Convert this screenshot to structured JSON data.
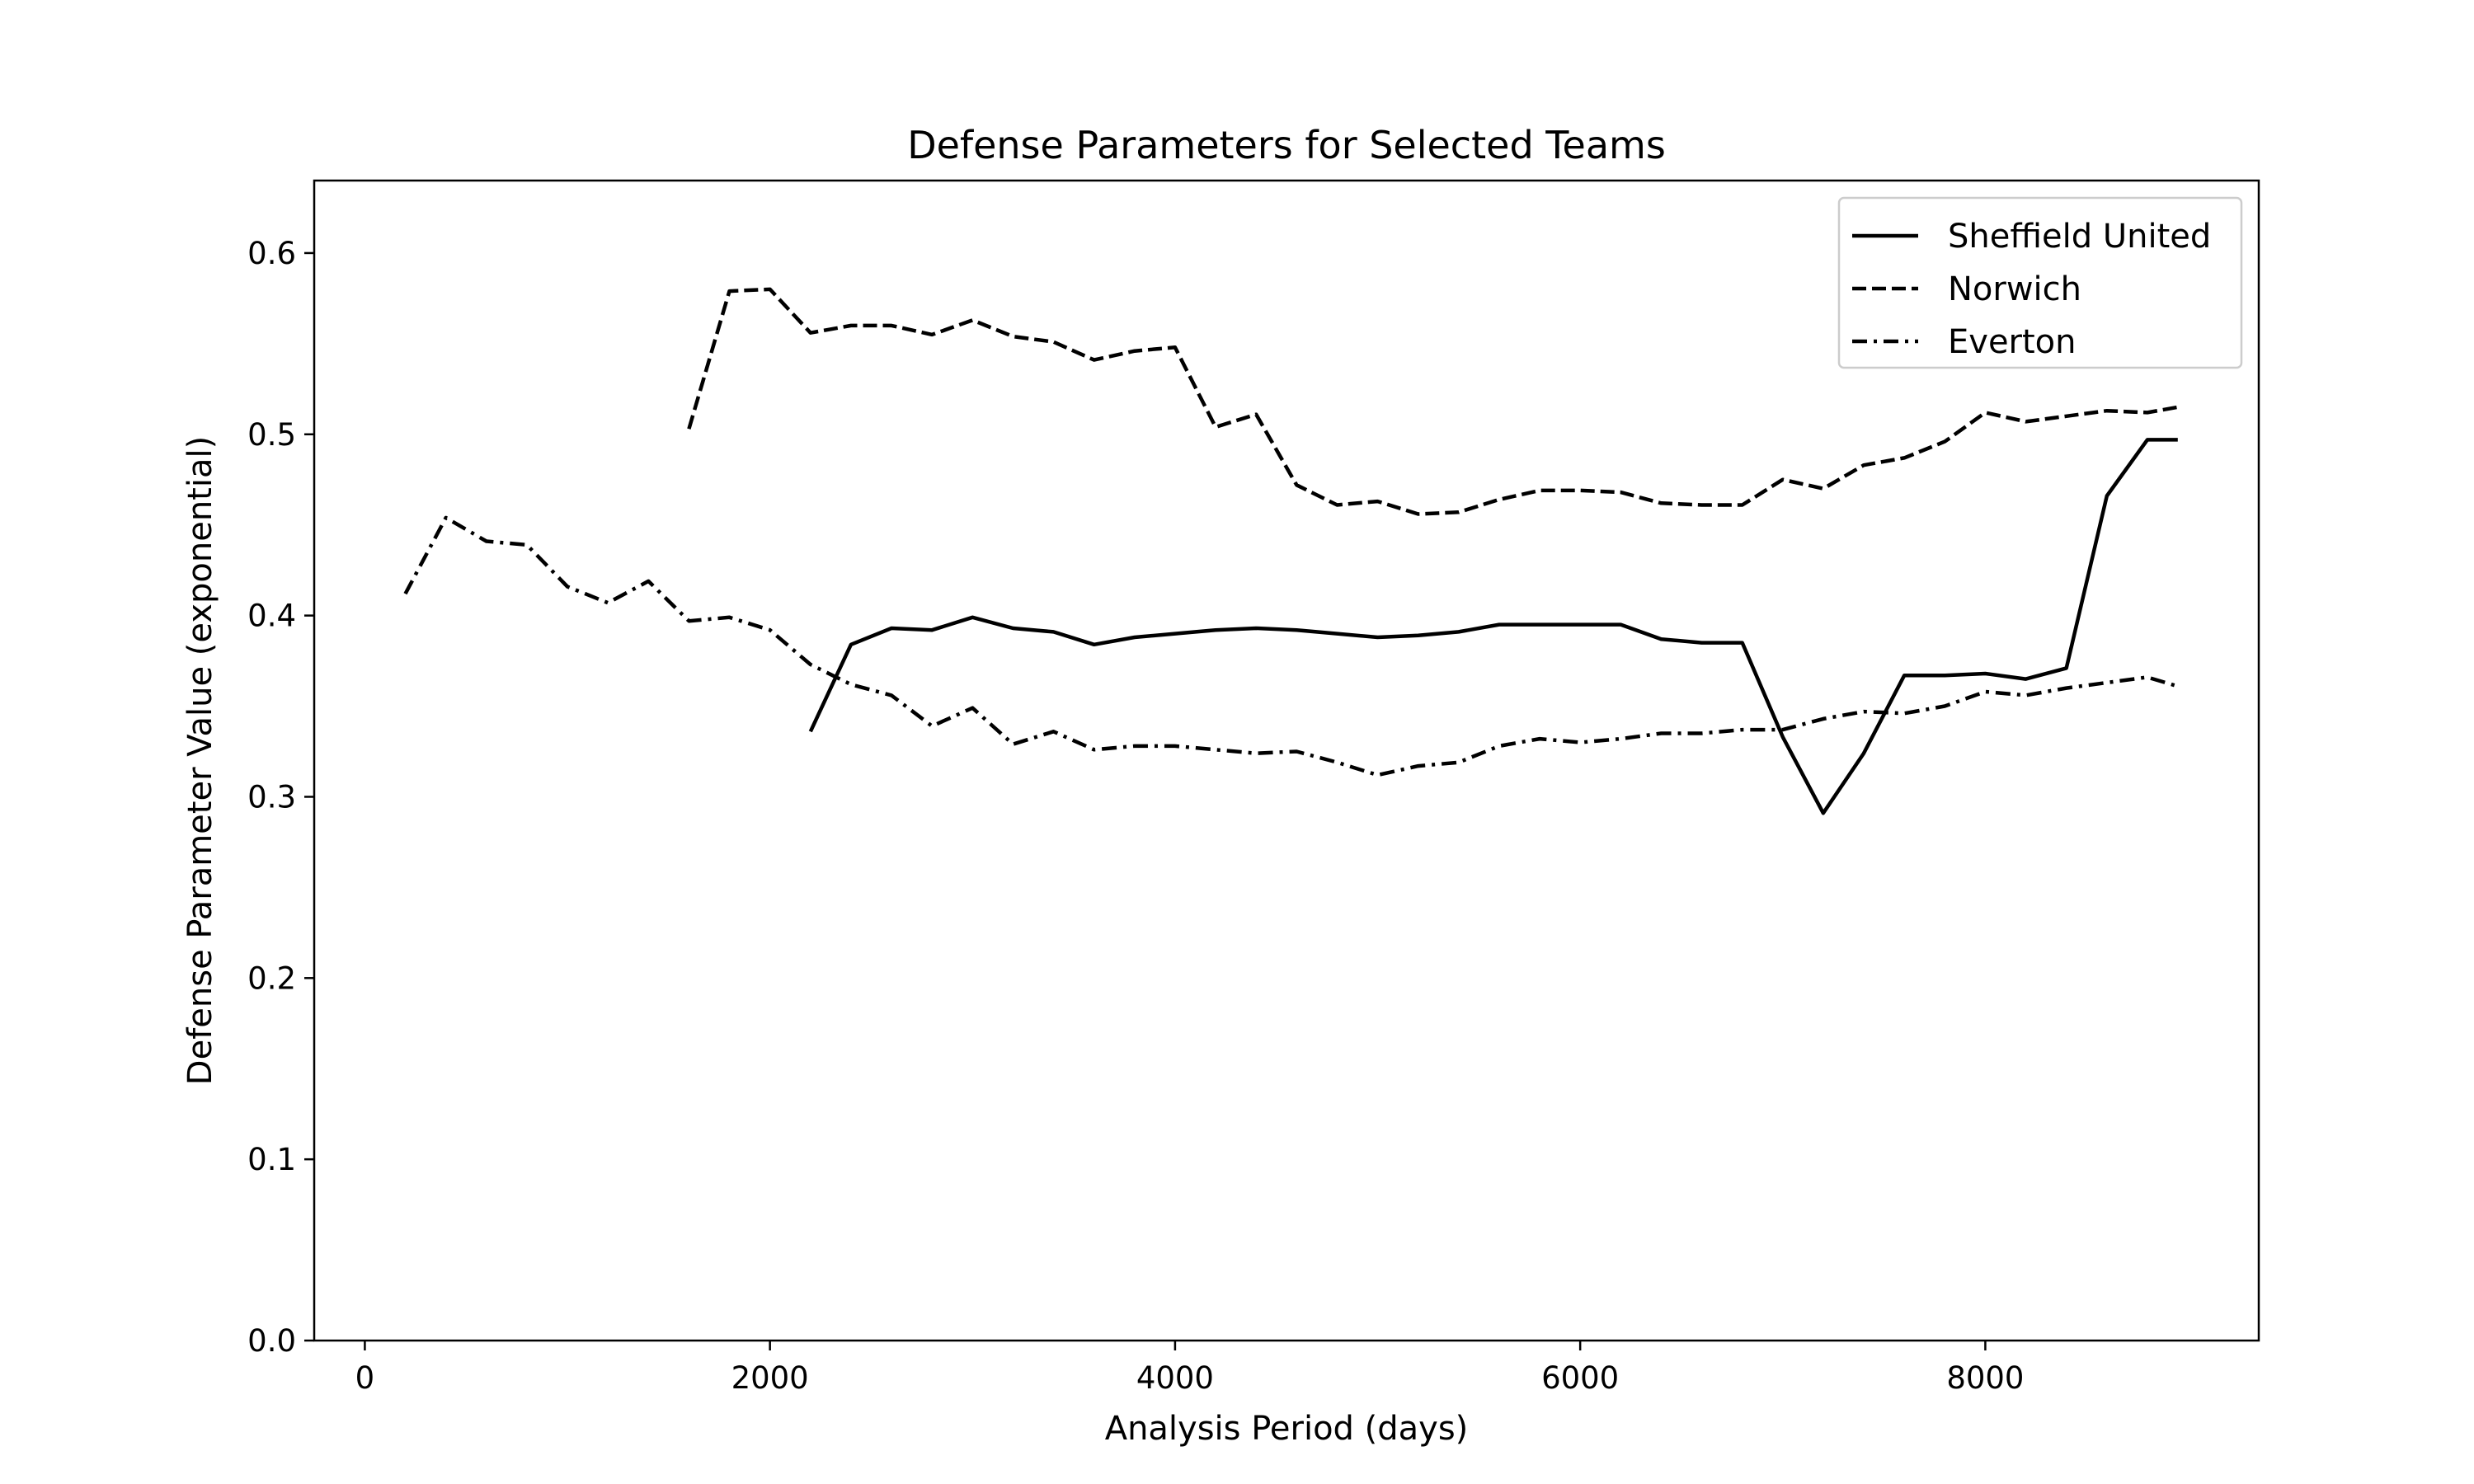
{
  "chart_data": {
    "type": "line",
    "title": "Defense Parameters for Selected Teams",
    "xlabel": "Analysis Period (days)",
    "ylabel": "Defense Parameter Value (exponential)",
    "xlim": [
      -250,
      9350
    ],
    "ylim": [
      0.0,
      0.64
    ],
    "xticks": [
      0,
      2000,
      4000,
      6000,
      8000
    ],
    "xtick_labels": [
      "0",
      "2000",
      "4000",
      "6000",
      "8000"
    ],
    "yticks": [
      0.0,
      0.1,
      0.2,
      0.3,
      0.4,
      0.5,
      0.6
    ],
    "ytick_labels": [
      "0.0",
      "0.1",
      "0.2",
      "0.3",
      "0.4",
      "0.5",
      "0.6"
    ],
    "grid": false,
    "legend_position": "top-right",
    "series": [
      {
        "name": "Sheffield United",
        "dash": "solid",
        "x": [
          2200,
          2400,
          2600,
          2800,
          3000,
          3200,
          3400,
          3600,
          3800,
          4000,
          4200,
          4400,
          4600,
          4800,
          5000,
          5200,
          5400,
          5600,
          5800,
          6000,
          6200,
          6400,
          6600,
          6800,
          7000,
          7200,
          7400,
          7600,
          7800,
          8000,
          8200,
          8400,
          8600,
          8800,
          8950
        ],
        "y": [
          0.336,
          0.384,
          0.393,
          0.392,
          0.399,
          0.393,
          0.391,
          0.384,
          0.388,
          0.39,
          0.392,
          0.393,
          0.392,
          0.39,
          0.388,
          0.389,
          0.391,
          0.395,
          0.395,
          0.395,
          0.395,
          0.387,
          0.385,
          0.385,
          0.333,
          0.291,
          0.324,
          0.367,
          0.367,
          0.368,
          0.365,
          0.371,
          0.466,
          0.497,
          0.497
        ]
      },
      {
        "name": "Norwich",
        "dash": "dashed",
        "x": [
          1600,
          1800,
          2000,
          2200,
          2400,
          2600,
          2800,
          3000,
          3200,
          3400,
          3600,
          3800,
          4000,
          4200,
          4400,
          4600,
          4800,
          5000,
          5200,
          5400,
          5600,
          5800,
          6000,
          6200,
          6400,
          6600,
          6800,
          7000,
          7200,
          7400,
          7600,
          7800,
          8000,
          8200,
          8400,
          8600,
          8800,
          8950
        ],
        "y": [
          0.503,
          0.579,
          0.58,
          0.556,
          0.56,
          0.56,
          0.555,
          0.563,
          0.554,
          0.551,
          0.541,
          0.546,
          0.548,
          0.504,
          0.511,
          0.472,
          0.461,
          0.463,
          0.456,
          0.457,
          0.464,
          0.469,
          0.469,
          0.468,
          0.462,
          0.461,
          0.461,
          0.475,
          0.47,
          0.483,
          0.487,
          0.496,
          0.512,
          0.507,
          0.51,
          0.513,
          0.512,
          0.515
        ]
      },
      {
        "name": "Everton",
        "dash": "dashdot",
        "x": [
          200,
          400,
          600,
          800,
          1000,
          1200,
          1400,
          1600,
          1800,
          2000,
          2200,
          2400,
          2600,
          2800,
          3000,
          3200,
          3400,
          3600,
          3800,
          4000,
          4200,
          4400,
          4600,
          4800,
          5000,
          5200,
          5400,
          5600,
          5800,
          6000,
          6200,
          6400,
          6600,
          6800,
          7000,
          7200,
          7400,
          7600,
          7800,
          8000,
          8200,
          8400,
          8600,
          8800,
          8950
        ],
        "y": [
          0.412,
          0.454,
          0.441,
          0.439,
          0.416,
          0.407,
          0.419,
          0.397,
          0.399,
          0.392,
          0.373,
          0.362,
          0.356,
          0.339,
          0.349,
          0.329,
          0.336,
          0.326,
          0.328,
          0.328,
          0.326,
          0.324,
          0.325,
          0.319,
          0.312,
          0.317,
          0.319,
          0.328,
          0.332,
          0.33,
          0.332,
          0.335,
          0.335,
          0.337,
          0.337,
          0.343,
          0.347,
          0.346,
          0.35,
          0.358,
          0.356,
          0.36,
          0.363,
          0.366,
          0.361
        ]
      }
    ]
  }
}
